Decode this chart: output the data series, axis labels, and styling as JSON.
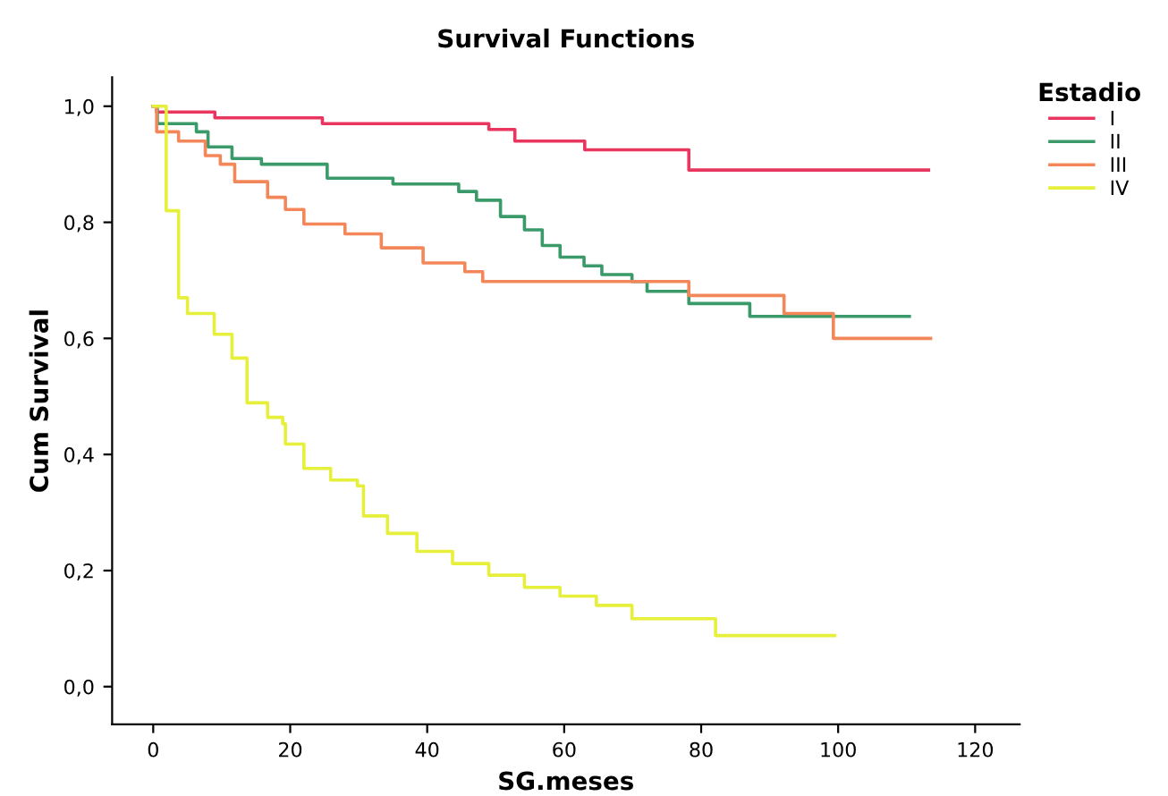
{
  "chart_data": {
    "type": "step",
    "title": "Survival Functions",
    "xlabel": "SG.meses",
    "ylabel": "Cum Survival",
    "legend_title": "Estadio",
    "legend": "top right",
    "grid": false,
    "xlim": [
      -6,
      126.5
    ],
    "xticks": [
      0,
      20,
      40,
      60,
      80,
      100,
      120
    ],
    "ylim": [
      -0.065,
      1.05
    ],
    "yticks": [
      {
        "value": 0,
        "label": "0,0"
      },
      {
        "value": 0.2,
        "label": "0,2"
      },
      {
        "value": 0.4,
        "label": "0,4"
      },
      {
        "value": 0.6,
        "label": "0,6"
      },
      {
        "value": 0.8,
        "label": "0,8"
      },
      {
        "value": 1,
        "label": "1,0"
      }
    ],
    "series": [
      {
        "name": "I",
        "color": "#e8365e",
        "x": [
          0,
          0.5,
          9,
          24.7,
          49,
          52.8,
          63,
          78.2,
          113.2
        ],
        "values": [
          1,
          0.99,
          0.98,
          0.97,
          0.96,
          0.94,
          0.925,
          0.89,
          0.89
        ]
      },
      {
        "name": "II",
        "color": "#3a9a6a",
        "x": [
          0,
          0.6,
          6.3,
          8,
          11.5,
          15.8,
          25.4,
          35,
          44.6,
          47.2,
          50.7,
          54.2,
          56.8,
          59.4,
          62.9,
          65.5,
          69.9,
          72.1,
          78.2,
          87.1,
          110.4
        ],
        "values": [
          1,
          0.97,
          0.956,
          0.93,
          0.91,
          0.9,
          0.876,
          0.866,
          0.853,
          0.838,
          0.81,
          0.787,
          0.76,
          0.74,
          0.725,
          0.71,
          0.698,
          0.681,
          0.66,
          0.638,
          0.638
        ]
      },
      {
        "name": "III",
        "color": "#f4875a",
        "x": [
          0,
          0.5,
          3.7,
          7.6,
          9.8,
          11.9,
          16.7,
          19.3,
          22,
          28,
          33.3,
          39.4,
          45.5,
          48.1,
          78.2,
          92.1,
          99.3,
          113.5
        ],
        "values": [
          1,
          0.956,
          0.94,
          0.915,
          0.9,
          0.87,
          0.843,
          0.822,
          0.797,
          0.78,
          0.756,
          0.73,
          0.715,
          0.698,
          0.674,
          0.643,
          0.6,
          0.6
        ]
      },
      {
        "name": "IV",
        "color": "#e6f03a",
        "x": [
          0,
          1.9,
          3.7,
          5,
          8.9,
          11.5,
          13.7,
          16.7,
          18.9,
          19.3,
          22,
          25.9,
          29.8,
          30.7,
          34.2,
          38.5,
          43.7,
          49,
          54.2,
          59.4,
          64.7,
          69.9,
          82.1,
          99.5
        ],
        "values": [
          1,
          0.82,
          0.67,
          0.643,
          0.607,
          0.566,
          0.489,
          0.464,
          0.453,
          0.418,
          0.376,
          0.356,
          0.346,
          0.294,
          0.264,
          0.233,
          0.212,
          0.192,
          0.171,
          0.156,
          0.14,
          0.117,
          0.088,
          0.088
        ]
      }
    ]
  }
}
